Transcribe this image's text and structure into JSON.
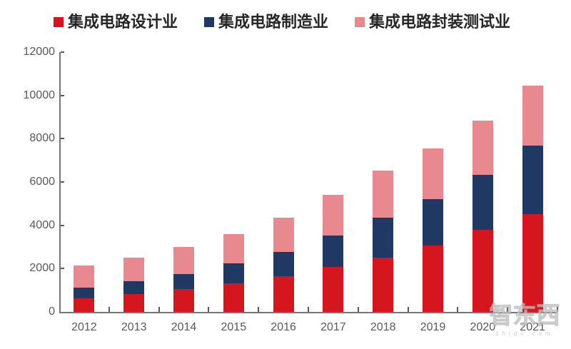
{
  "legend": {
    "items": [
      {
        "label": "集成电路设计业",
        "color": "#D6161F"
      },
      {
        "label": "集成电路制造业",
        "color": "#1F3864"
      },
      {
        "label": "集成电路封装测试业",
        "color": "#E8888F"
      }
    ]
  },
  "chart_data": {
    "type": "bar",
    "stacked": true,
    "title": "",
    "xlabel": "",
    "ylabel": "",
    "grid": false,
    "legend_position": "top",
    "categories": [
      "2012",
      "2013",
      "2014",
      "2015",
      "2016",
      "2017",
      "2018",
      "2019",
      "2020",
      "2021"
    ],
    "series": [
      {
        "name": "集成电路设计业",
        "color": "#D6161F",
        "values": [
          621.7,
          808.8,
          1047.4,
          1325.0,
          1644.3,
          2073.5,
          2519.3,
          3063.5,
          3778.4,
          4519.0
        ]
      },
      {
        "name": "集成电路制造业",
        "color": "#1F3864",
        "values": [
          501.1,
          600.9,
          712.1,
          900.8,
          1126.9,
          1448.1,
          1818.2,
          2149.1,
          2560.1,
          3176.3
        ]
      },
      {
        "name": "集成电路封装测试业",
        "color": "#E8888F",
        "values": [
          1035.7,
          1098.8,
          1255.9,
          1384.0,
          1564.3,
          1889.7,
          2193.9,
          2349.7,
          2509.5,
          2763.0
        ]
      }
    ],
    "ylim": [
      0,
      12000
    ],
    "y_ticks": [
      0,
      2000,
      4000,
      6000,
      8000,
      10000,
      12000
    ],
    "y_tick_labels": [
      "0",
      "2000",
      "4000",
      "6000",
      "8000",
      "10000",
      "12000"
    ]
  },
  "watermark": {
    "title": "智东西",
    "subtitle": "zhidx.com"
  }
}
